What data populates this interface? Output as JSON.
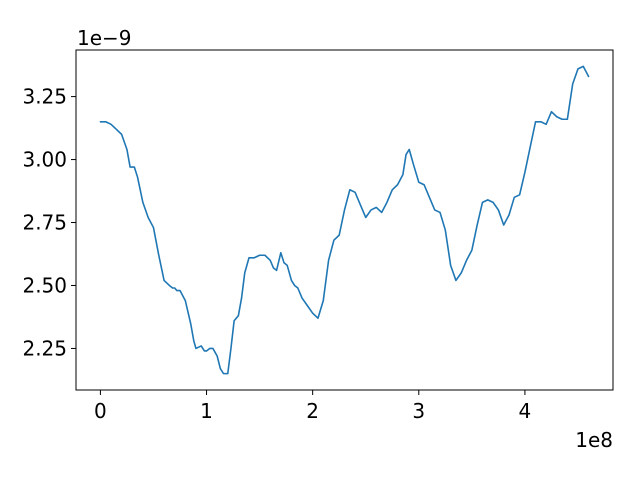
{
  "chart_data": {
    "type": "line",
    "title": "",
    "xlabel": "",
    "ylabel": "",
    "x_offset_label": "1e8",
    "y_offset_label": "1e−9",
    "xlim": [
      -0.23,
      4.83
    ],
    "ylim": [
      2.085,
      3.435
    ],
    "x_ticks": [
      0,
      1,
      2,
      3,
      4
    ],
    "x_tick_labels": [
      "0",
      "1",
      "2",
      "3",
      "4"
    ],
    "y_ticks": [
      2.25,
      2.5,
      2.75,
      3.0,
      3.25
    ],
    "y_tick_labels": [
      "2.25",
      "2.50",
      "2.75",
      "3.00",
      "3.25"
    ],
    "grid": false,
    "legend": "none",
    "colors": {
      "series": "#1f77b4",
      "axes": "#000000",
      "background": "#ffffff"
    },
    "series": [
      {
        "x": [
          0.0,
          0.05,
          0.1,
          0.15,
          0.2,
          0.25,
          0.28,
          0.32,
          0.35,
          0.4,
          0.45,
          0.5,
          0.55,
          0.6,
          0.65,
          0.68,
          0.7,
          0.72,
          0.75,
          0.8,
          0.85,
          0.88,
          0.9,
          0.95,
          0.98,
          1.0,
          1.03,
          1.06,
          1.1,
          1.13,
          1.16,
          1.2,
          1.23,
          1.26,
          1.3,
          1.33,
          1.36,
          1.4,
          1.45,
          1.5,
          1.55,
          1.6,
          1.63,
          1.66,
          1.7,
          1.73,
          1.76,
          1.8,
          1.83,
          1.86,
          1.9,
          1.95,
          2.0,
          2.05,
          2.1,
          2.15,
          2.2,
          2.25,
          2.3,
          2.35,
          2.4,
          2.45,
          2.5,
          2.55,
          2.6,
          2.65,
          2.7,
          2.75,
          2.8,
          2.85,
          2.88,
          2.91,
          2.95,
          3.0,
          3.05,
          3.1,
          3.15,
          3.2,
          3.25,
          3.3,
          3.35,
          3.4,
          3.45,
          3.5,
          3.55,
          3.6,
          3.65,
          3.7,
          3.75,
          3.8,
          3.85,
          3.9,
          3.95,
          4.0,
          4.05,
          4.1,
          4.15,
          4.2,
          4.25,
          4.3,
          4.35,
          4.4,
          4.45,
          4.5,
          4.55,
          4.6
        ],
        "y": [
          3.15,
          3.15,
          3.14,
          3.12,
          3.1,
          3.04,
          2.97,
          2.97,
          2.93,
          2.83,
          2.77,
          2.73,
          2.62,
          2.52,
          2.5,
          2.49,
          2.49,
          2.48,
          2.48,
          2.44,
          2.35,
          2.28,
          2.25,
          2.26,
          2.24,
          2.24,
          2.25,
          2.25,
          2.22,
          2.17,
          2.15,
          2.15,
          2.25,
          2.36,
          2.38,
          2.45,
          2.55,
          2.61,
          2.61,
          2.62,
          2.62,
          2.6,
          2.57,
          2.56,
          2.63,
          2.59,
          2.58,
          2.52,
          2.5,
          2.49,
          2.45,
          2.42,
          2.39,
          2.37,
          2.44,
          2.6,
          2.68,
          2.7,
          2.8,
          2.88,
          2.87,
          2.82,
          2.77,
          2.8,
          2.81,
          2.79,
          2.83,
          2.88,
          2.9,
          2.94,
          3.02,
          3.04,
          2.98,
          2.91,
          2.9,
          2.85,
          2.8,
          2.79,
          2.72,
          2.58,
          2.52,
          2.55,
          2.6,
          2.64,
          2.74,
          2.83,
          2.84,
          2.83,
          2.8,
          2.74,
          2.78,
          2.85,
          2.86,
          2.95,
          3.05,
          3.15,
          3.15,
          3.14,
          3.19,
          3.17,
          3.16,
          3.16,
          3.3,
          3.36,
          3.37,
          3.33
        ]
      }
    ]
  }
}
